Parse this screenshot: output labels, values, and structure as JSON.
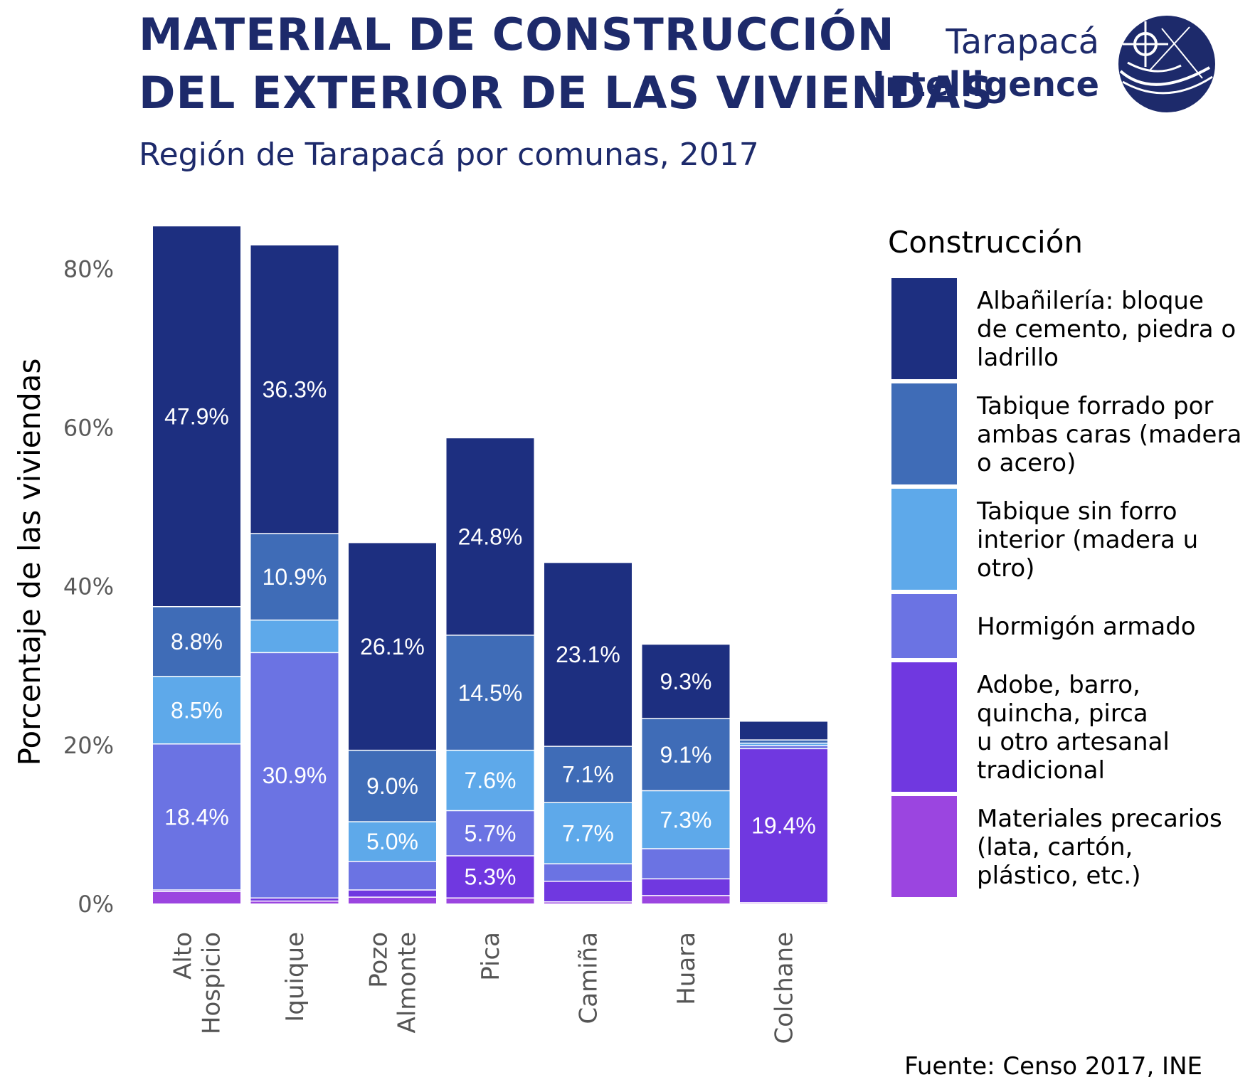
{
  "header": {
    "title_line1": "MATERIAL DE CONSTRUCCIÓN",
    "title_line2": "DEL EXTERIOR DE LAS VIVIENDAS",
    "subtitle": "Región de Tarapacá por comunas, 2017"
  },
  "brand": {
    "line1": "Tarapacá",
    "line2": "Intelligence",
    "color": "#1d2a6b"
  },
  "source": "Fuente: Censo 2017, INE",
  "chart_data": {
    "type": "bar",
    "stacked": true,
    "title": "MATERIAL DE CONSTRUCCIÓN DEL EXTERIOR DE LAS VIVIENDAS",
    "subtitle": "Región de Tarapacá por comunas, 2017",
    "ylabel": "Porcentaje de las viviendas",
    "ylim": [
      0,
      85.5
    ],
    "yticks": [
      0,
      20,
      40,
      60,
      80
    ],
    "ytick_labels": [
      "0%",
      "20%",
      "40%",
      "60%",
      "80%"
    ],
    "grid": false,
    "legend_title": "Construcción",
    "legend_position": "right",
    "categories": [
      [
        "Alto",
        "Hospicio"
      ],
      [
        "Iquique"
      ],
      [
        "Pozo",
        "Almonte"
      ],
      [
        "Pica"
      ],
      [
        "Camiña"
      ],
      [
        "Huara"
      ],
      [
        "Colchane"
      ]
    ],
    "series": [
      {
        "name_lines": [
          "Materiales precarios",
          "(lata, cartón,",
          "plástico, etc.)"
        ],
        "color": "#9b45e0",
        "values": [
          1.5,
          0.3,
          0.8,
          0.7,
          0.2,
          1.0,
          0.1
        ],
        "labels": [
          "",
          "",
          "",
          "",
          "",
          "",
          ""
        ]
      },
      {
        "name_lines": [
          "Adobe, barro,",
          "quincha, pirca",
          "u otro artesanal",
          "tradicional"
        ],
        "color": "#7038e0",
        "values": [
          0.2,
          0.4,
          0.9,
          5.3,
          2.6,
          2.1,
          19.4
        ],
        "labels": [
          "",
          "",
          "",
          "5.3%",
          "",
          "",
          "19.4%"
        ]
      },
      {
        "name_lines": [
          "Hormigón armado"
        ],
        "color": "#6b73e3",
        "values": [
          18.4,
          30.9,
          3.6,
          5.7,
          2.2,
          3.8,
          0.4
        ],
        "labels": [
          "18.4%",
          "30.9%",
          "",
          "5.7%",
          "",
          "",
          ""
        ]
      },
      {
        "name_lines": [
          "Tabique sin forro",
          "interior (madera u",
          "otro)"
        ],
        "color": "#5ea9ea",
        "values": [
          8.5,
          4.1,
          5.0,
          7.6,
          7.7,
          7.3,
          0.3
        ],
        "labels": [
          "8.5%",
          "",
          "5.0%",
          "7.6%",
          "7.7%",
          "7.3%",
          ""
        ]
      },
      {
        "name_lines": [
          "Tabique forrado por",
          "ambas caras (madera",
          "o acero)"
        ],
        "color": "#3f6cb7",
        "values": [
          8.8,
          10.9,
          9.0,
          14.5,
          7.1,
          9.1,
          0.4
        ],
        "labels": [
          "8.8%",
          "10.9%",
          "9.0%",
          "14.5%",
          "7.1%",
          "9.1%",
          ""
        ]
      },
      {
        "name_lines": [
          "Albañilería: bloque",
          "de cemento, piedra o",
          "ladrillo"
        ],
        "color": "#1d2f80",
        "values": [
          47.9,
          36.3,
          26.1,
          24.8,
          23.1,
          9.3,
          2.3
        ],
        "labels": [
          "47.9%",
          "36.3%",
          "26.1%",
          "24.8%",
          "23.1%",
          "9.3%",
          ""
        ]
      }
    ]
  }
}
